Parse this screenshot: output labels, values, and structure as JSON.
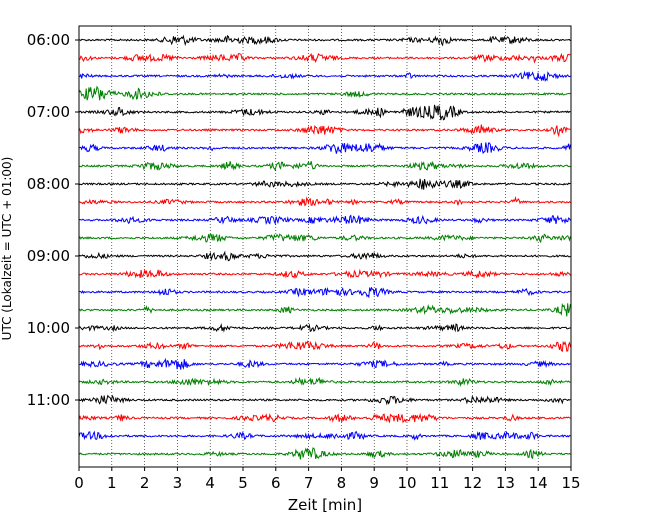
{
  "chart_data": {
    "type": "line",
    "title": "",
    "xlabel": "Zeit  [min]",
    "ylabel": "UTC (Lokalzeit = UTC + 01:00)",
    "xlim": [
      0,
      15
    ],
    "x_ticks": [
      0,
      1,
      2,
      3,
      4,
      5,
      6,
      7,
      8,
      9,
      10,
      11,
      12,
      13,
      14,
      15
    ],
    "y_tick_labels": [
      "06:00",
      "07:00",
      "08:00",
      "09:00",
      "10:00",
      "11:00"
    ],
    "traces_per_hour": 4,
    "trace_start": "06:00",
    "trace_end": "11:45",
    "trace_colors": [
      "#000000",
      "#ff0000",
      "#0000ff",
      "#008000"
    ],
    "grid": "vertical dotted",
    "legend": "none"
  }
}
